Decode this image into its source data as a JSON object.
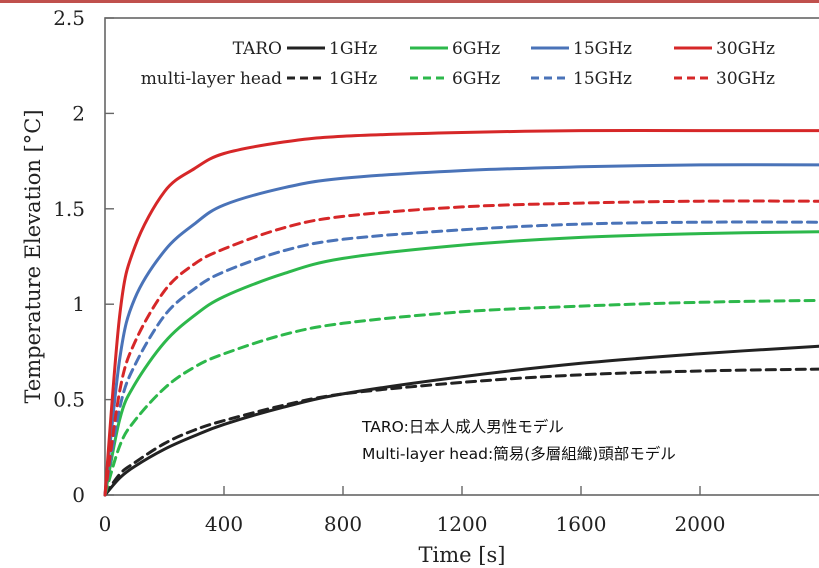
{
  "chart_data": {
    "type": "line",
    "xlabel": "Time [s]",
    "ylabel": "Temperature Elevation [°C]",
    "xlim": [
      0,
      2400
    ],
    "ylim": [
      0,
      2.5
    ],
    "x_ticks": [
      "0",
      "400",
      "800",
      "1200",
      "1600",
      "2000"
    ],
    "y_ticks": [
      "0",
      "0.5",
      "1",
      "1.5",
      "2",
      "2.5"
    ],
    "grid": false,
    "legend_position": "top",
    "legend_groups": [
      "TARO",
      "multi-layer head"
    ],
    "series": [
      {
        "name": "1GHz",
        "group": "TARO",
        "color": "#222222",
        "dash": false,
        "x": [
          0,
          50,
          100,
          200,
          300,
          400,
          600,
          800,
          1200,
          1600,
          2000,
          2400
        ],
        "y": [
          0,
          0.09,
          0.15,
          0.24,
          0.31,
          0.37,
          0.46,
          0.53,
          0.62,
          0.69,
          0.74,
          0.78
        ]
      },
      {
        "name": "6GHz",
        "group": "TARO",
        "color": "#2db84b",
        "dash": false,
        "x": [
          0,
          50,
          100,
          200,
          300,
          400,
          600,
          800,
          1200,
          1600,
          2000,
          2400
        ],
        "y": [
          0,
          0.4,
          0.58,
          0.8,
          0.94,
          1.04,
          1.16,
          1.24,
          1.31,
          1.35,
          1.37,
          1.38
        ]
      },
      {
        "name": "15GHz",
        "group": "TARO",
        "color": "#4a73b8",
        "dash": false,
        "x": [
          0,
          50,
          100,
          200,
          300,
          400,
          600,
          800,
          1200,
          1600,
          2000,
          2400
        ],
        "y": [
          0,
          0.72,
          1.03,
          1.28,
          1.42,
          1.52,
          1.61,
          1.66,
          1.7,
          1.72,
          1.73,
          1.73
        ]
      },
      {
        "name": "30GHz",
        "group": "TARO",
        "color": "#d62728",
        "dash": false,
        "x": [
          0,
          50,
          100,
          200,
          300,
          400,
          600,
          800,
          1200,
          1600,
          2000,
          2400
        ],
        "y": [
          0,
          0.95,
          1.3,
          1.59,
          1.71,
          1.79,
          1.85,
          1.88,
          1.9,
          1.91,
          1.91,
          1.91
        ]
      },
      {
        "name": "1GHz",
        "group": "multi-layer head",
        "color": "#222222",
        "dash": true,
        "x": [
          0,
          50,
          100,
          200,
          300,
          400,
          600,
          800,
          1200,
          1600,
          2000,
          2400
        ],
        "y": [
          0,
          0.11,
          0.17,
          0.27,
          0.34,
          0.39,
          0.47,
          0.53,
          0.59,
          0.63,
          0.65,
          0.66
        ]
      },
      {
        "name": "6GHz",
        "group": "multi-layer head",
        "color": "#2db84b",
        "dash": true,
        "x": [
          0,
          50,
          100,
          200,
          300,
          400,
          600,
          800,
          1200,
          1600,
          2000,
          2400
        ],
        "y": [
          0,
          0.26,
          0.39,
          0.56,
          0.67,
          0.74,
          0.84,
          0.9,
          0.96,
          0.99,
          1.01,
          1.02
        ]
      },
      {
        "name": "15GHz",
        "group": "multi-layer head",
        "color": "#4a73b8",
        "dash": true,
        "x": [
          0,
          50,
          100,
          200,
          300,
          400,
          600,
          800,
          1200,
          1600,
          2000,
          2400
        ],
        "y": [
          0,
          0.46,
          0.68,
          0.94,
          1.08,
          1.17,
          1.28,
          1.34,
          1.39,
          1.42,
          1.43,
          1.43
        ]
      },
      {
        "name": "30GHz",
        "group": "multi-layer head",
        "color": "#d62728",
        "dash": true,
        "x": [
          0,
          50,
          100,
          200,
          300,
          400,
          600,
          800,
          1200,
          1600,
          2000,
          2400
        ],
        "y": [
          0,
          0.55,
          0.8,
          1.07,
          1.21,
          1.29,
          1.4,
          1.46,
          1.51,
          1.53,
          1.54,
          1.54
        ]
      }
    ]
  },
  "annotations": {
    "line1": "TARO:日本人成人男性モデル",
    "line2": "Multi-layer head:簡易(多層組織)頭部モデル"
  }
}
